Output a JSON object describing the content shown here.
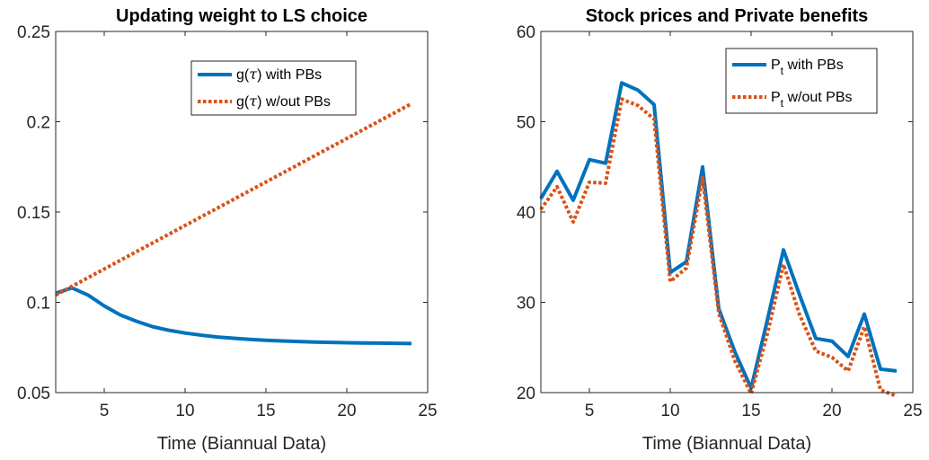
{
  "chart_data": [
    {
      "type": "line",
      "title": "Updating weight to LS choice",
      "xlabel": "Time (Biannual Data)",
      "ylabel": "",
      "xlim": [
        2,
        25
      ],
      "ylim": [
        0.05,
        0.25
      ],
      "xticks": [
        5,
        10,
        15,
        20,
        25
      ],
      "yticks": [
        0.05,
        0.1,
        0.15,
        0.2,
        0.25
      ],
      "xtick_labels": [
        "5",
        "10",
        "15",
        "20",
        "25"
      ],
      "ytick_labels": [
        "0.05",
        "0.1",
        "0.15",
        "0.2",
        "0.25"
      ],
      "grid": false,
      "legend_position": "top-right",
      "series": [
        {
          "name": "g(τ) with PBs",
          "legend_text": "g(",
          "legend_tau": "τ",
          "legend_suffix": ") with PBs",
          "color": "#0072bd",
          "style": "solid",
          "x": [
            2,
            3,
            4,
            5,
            6,
            7,
            8,
            9,
            10,
            11,
            12,
            13,
            14,
            15,
            16,
            17,
            18,
            19,
            20,
            21,
            22,
            23,
            24
          ],
          "y": [
            0.105,
            0.108,
            0.104,
            0.098,
            0.093,
            0.0895,
            0.0865,
            0.0845,
            0.083,
            0.0818,
            0.0808,
            0.0801,
            0.0795,
            0.079,
            0.0786,
            0.0783,
            0.078,
            0.0778,
            0.0776,
            0.0775,
            0.0774,
            0.0773,
            0.0772
          ]
        },
        {
          "name": "g(τ) w/out PBs",
          "legend_text": "g(",
          "legend_tau": "τ",
          "legend_suffix": ") w/out PBs",
          "color": "#d95319",
          "style": "dotted",
          "x": [
            2,
            24
          ],
          "y": [
            0.104,
            0.21
          ]
        }
      ]
    },
    {
      "type": "line",
      "title": "Stock prices and Private benefits",
      "xlabel": "Time (Biannual Data)",
      "ylabel": "",
      "xlim": [
        2,
        25
      ],
      "ylim": [
        20,
        60
      ],
      "xticks": [
        5,
        10,
        15,
        20,
        25
      ],
      "yticks": [
        20,
        30,
        40,
        50,
        60
      ],
      "xtick_labels": [
        "5",
        "10",
        "15",
        "20",
        "25"
      ],
      "ytick_labels": [
        "20",
        "30",
        "40",
        "50",
        "60"
      ],
      "grid": false,
      "legend_position": "top-right",
      "series": [
        {
          "name": "P_t with PBs",
          "legend_text": "P",
          "legend_sub": "t",
          "legend_suffix": " with PBs",
          "color": "#0072bd",
          "style": "solid",
          "x": [
            2,
            3,
            4,
            5,
            6,
            7,
            8,
            9,
            10,
            11,
            12,
            13,
            14,
            15,
            16,
            17,
            18,
            19,
            20,
            21,
            22,
            23,
            24
          ],
          "y": [
            41.5,
            44.5,
            41.3,
            45.8,
            45.4,
            54.3,
            53.5,
            51.9,
            33.3,
            34.5,
            45.0,
            29.3,
            24.5,
            20.5,
            28.0,
            35.8,
            30.8,
            26.0,
            25.7,
            24.0,
            28.7,
            22.6,
            22.4
          ]
        },
        {
          "name": "P_t w/out PBs",
          "legend_text": "P",
          "legend_sub": "t",
          "legend_suffix": " w/out PBs",
          "color": "#d95319",
          "style": "dotted",
          "x": [
            2,
            3,
            4,
            5,
            6,
            7,
            8,
            9,
            10,
            11,
            12,
            13,
            14,
            15,
            16,
            17,
            18,
            19,
            20,
            21,
            22,
            23,
            24
          ],
          "y": [
            40.3,
            42.8,
            38.9,
            43.3,
            43.2,
            52.5,
            51.8,
            50.3,
            32.3,
            33.8,
            43.8,
            28.8,
            23.5,
            19.9,
            26.5,
            34.2,
            28.6,
            24.6,
            23.9,
            22.4,
            27.3,
            20.3,
            19.6
          ]
        }
      ]
    }
  ]
}
